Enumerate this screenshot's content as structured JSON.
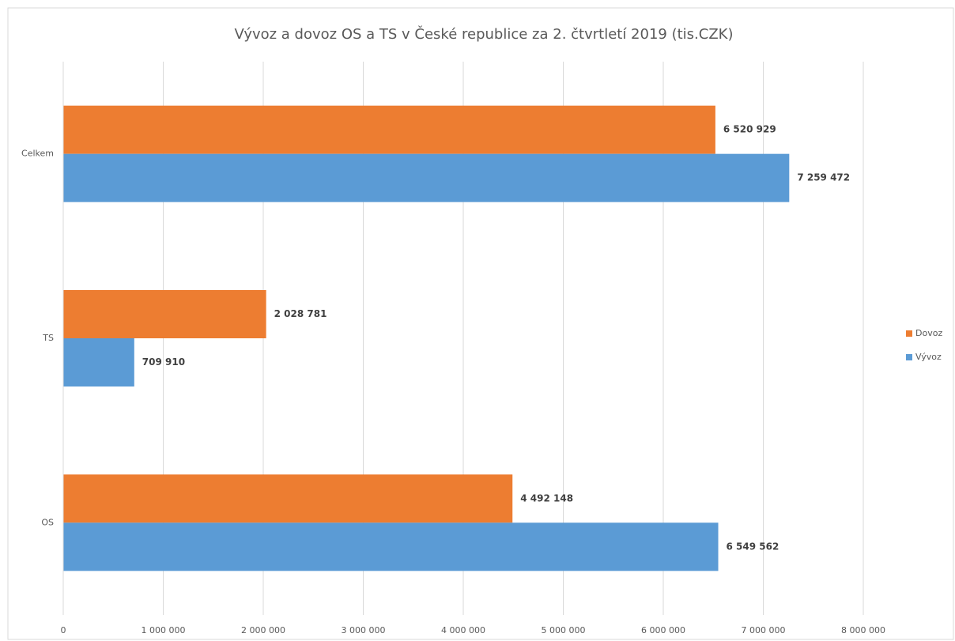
{
  "chart_data": {
    "type": "hbar",
    "title": "Vývoz a dovoz OS a TS v České republice za 2. čtvrtletí 2019 (tis.CZK)",
    "categories": [
      "OS",
      "TS",
      "Celkem"
    ],
    "series": [
      {
        "name": "Dovoz",
        "color": "#ed7d31",
        "values": [
          4492148,
          2028781,
          6520929
        ],
        "value_labels": [
          "4 492 148",
          "2 028 781",
          "6 520 929"
        ]
      },
      {
        "name": "Vývoz",
        "color": "#5b9bd5",
        "values": [
          6549562,
          709910,
          7259472
        ],
        "value_labels": [
          "6 549 562",
          "709 910",
          "7 259 472"
        ]
      }
    ],
    "xlim": [
      0,
      8000000
    ],
    "xticks": [
      0,
      {
        "value": 1000000,
        "label": "1 000 000"
      },
      {
        "value": 2000000,
        "label": "2 000 000"
      },
      {
        "value": 3000000,
        "label": "3 000 000"
      },
      {
        "value": 4000000,
        "label": "4 000 000"
      },
      {
        "value": 5000000,
        "label": "5 000 000"
      },
      {
        "value": 6000000,
        "label": "6 000 000"
      },
      {
        "value": 7000000,
        "label": "7 000 000"
      },
      {
        "value": 8000000,
        "label": "8 000 000"
      }
    ],
    "grid": true,
    "legend": "right"
  }
}
